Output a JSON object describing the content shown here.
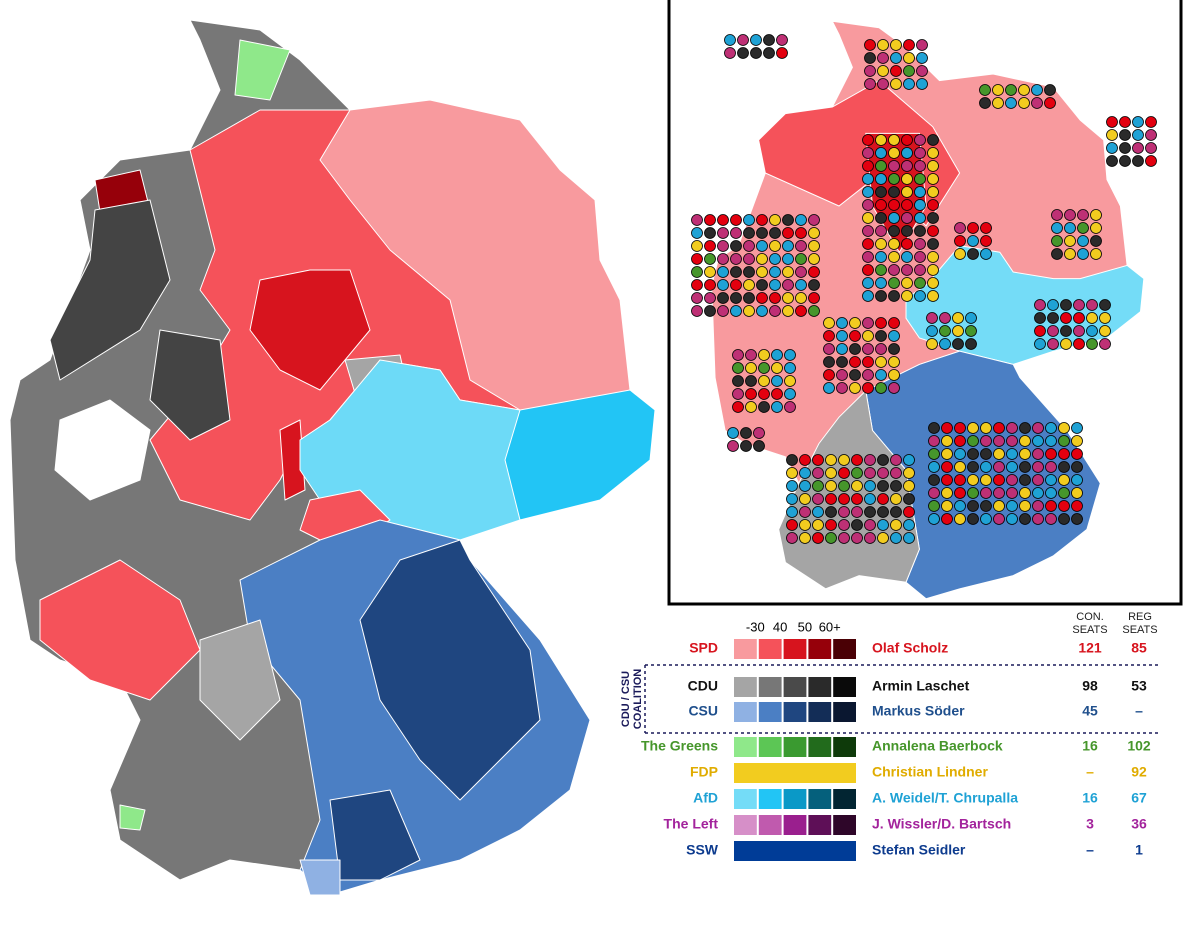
{
  "legend": {
    "scale": [
      "-30",
      "40",
      "50",
      "60+"
    ],
    "con_header": [
      "CON.",
      "SEATS"
    ],
    "reg_header": [
      "REG",
      "SEATS"
    ],
    "coalition_label": [
      "CDU / CSU",
      "COALITION"
    ],
    "rows": [
      {
        "party": "SPD",
        "leader": "Olaf Scholz",
        "con": "121",
        "reg": "85",
        "color": "#d7141e",
        "swatches": [
          "#f89a9e",
          "#f5525a",
          "#d7141e",
          "#96000a",
          "#4a0005"
        ]
      },
      {
        "party": "CDU",
        "leader": "Armin Laschet",
        "con": "98",
        "reg": "53",
        "color": "#111111",
        "swatches": [
          "#a5a5a5",
          "#777777",
          "#4a4a4a",
          "#2a2a2a",
          "#0a0a0a"
        ]
      },
      {
        "party": "CSU",
        "leader": "Markus Söder",
        "con": "45",
        "reg": "–",
        "color": "#1f4f8c",
        "swatches": [
          "#8fb1e3",
          "#4b7fc4",
          "#1f4680",
          "#132d57",
          "#0a1730"
        ]
      },
      {
        "party": "The Greens",
        "leader": "Annalena Baerbock",
        "con": "16",
        "reg": "102",
        "color": "#46962b",
        "swatches": [
          "#8fe88a",
          "#5cc655",
          "#3a9a30",
          "#226b1c",
          "#0e3a0a"
        ]
      },
      {
        "party": "FDP",
        "leader": "Christian Lindner",
        "con": "–",
        "reg": "92",
        "color": "#e0ac00",
        "swatches": [
          "#f2cc1f"
        ]
      },
      {
        "party": "AfD",
        "leader": "A. Weidel/T. Chrupalla",
        "con": "16",
        "reg": "67",
        "color": "#1fa2d5",
        "swatches": [
          "#74dcf7",
          "#22c5f5",
          "#0a99c7",
          "#05607c",
          "#022532"
        ]
      },
      {
        "party": "The Left",
        "leader": "J. Wissler/D. Bartsch",
        "con": "3",
        "reg": "36",
        "color": "#a3239c",
        "swatches": [
          "#d68fc8",
          "#c05aae",
          "#9a1f8e",
          "#5e0f57",
          "#2e0629"
        ]
      },
      {
        "party": "SSW",
        "leader": "Stefan Seidler",
        "con": "–",
        "reg": "1",
        "color": "#0d3b8e",
        "swatches": [
          "#003c97"
        ]
      }
    ]
  }
}
